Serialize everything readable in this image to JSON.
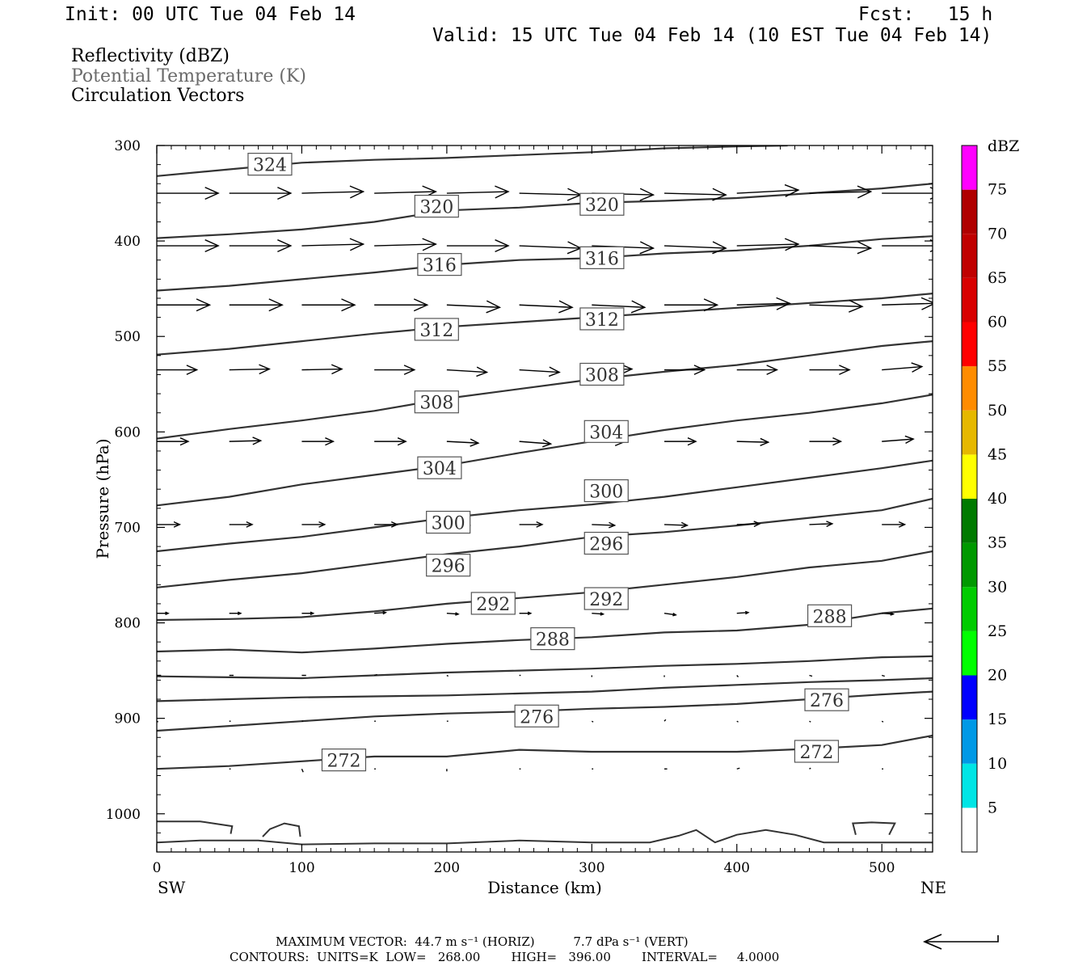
{
  "header": {
    "init": "Init: 00 UTC Tue 04 Feb 14",
    "fcst": "Fcst:   15 h",
    "valid": "Valid: 15 UTC Tue 04 Feb 14 (10 EST Tue 04 Feb 14)"
  },
  "fields": {
    "reflectivity": "Reflectivity (dBZ)",
    "theta": "Potential Temperature (K)",
    "vectors": "Circulation Vectors"
  },
  "footer": {
    "max_vector": "MAXIMUM VECTOR:  44.7 m s⁻¹ (HORIZ)          7.7 dPa s⁻¹ (VERT)",
    "contours": "CONTOURS:  UNITS=K  LOW=   268.00        HIGH=   396.00        INTERVAL=     4.0000"
  },
  "colors": {
    "contour": "#333333",
    "vector": "#000000",
    "scale": [
      "#ffffff",
      "#00e5e5",
      "#0099e6",
      "#0000ff",
      "#00ff00",
      "#00cc00",
      "#009900",
      "#007a00",
      "#ffff00",
      "#e6b800",
      "#ff8c00",
      "#ff0000",
      "#d80000",
      "#c00000",
      "#b00000",
      "#ff00ff",
      "#9966cc",
      "#ffffff"
    ]
  },
  "chart_data": {
    "type": "contour",
    "xlabel": "Distance (km)",
    "ylabel": "Pressure (hPa)",
    "xlim": [
      0,
      535
    ],
    "ylim": [
      1040,
      300
    ],
    "x_ticks": [
      0,
      100,
      200,
      300,
      400,
      500
    ],
    "y_ticks": [
      300,
      400,
      500,
      600,
      700,
      800,
      900,
      1000
    ],
    "x_ends": [
      "SW",
      "NE"
    ],
    "colorbar": {
      "title": "dBZ",
      "levels": [
        5,
        10,
        15,
        20,
        25,
        30,
        35,
        40,
        45,
        50,
        55,
        60,
        65,
        70,
        75
      ],
      "range": [
        0,
        80
      ]
    },
    "theta_contours": [
      {
        "value": 272,
        "points": [
          [
            0,
            953
          ],
          [
            50,
            950
          ],
          [
            100,
            945
          ],
          [
            150,
            940
          ],
          [
            200,
            940
          ],
          [
            250,
            933
          ],
          [
            300,
            935
          ],
          [
            350,
            935
          ],
          [
            400,
            935
          ],
          [
            450,
            932
          ],
          [
            500,
            928
          ],
          [
            535,
            918
          ]
        ]
      },
      {
        "value": 276,
        "points": [
          [
            0,
            913
          ],
          [
            50,
            908
          ],
          [
            100,
            903
          ],
          [
            150,
            898
          ],
          [
            200,
            895
          ],
          [
            250,
            893
          ],
          [
            300,
            890
          ],
          [
            350,
            888
          ],
          [
            400,
            885
          ],
          [
            450,
            880
          ],
          [
            500,
            875
          ],
          [
            535,
            872
          ]
        ]
      },
      {
        "value": 280,
        "points": [
          [
            0,
            882
          ],
          [
            50,
            880
          ],
          [
            100,
            878
          ],
          [
            150,
            877
          ],
          [
            200,
            876
          ],
          [
            250,
            874
          ],
          [
            300,
            872
          ],
          [
            350,
            868
          ],
          [
            400,
            865
          ],
          [
            450,
            862
          ],
          [
            500,
            860
          ],
          [
            535,
            858
          ]
        ]
      },
      {
        "value": 284,
        "points": [
          [
            0,
            856
          ],
          [
            50,
            857
          ],
          [
            100,
            858
          ],
          [
            150,
            855
          ],
          [
            200,
            852
          ],
          [
            250,
            850
          ],
          [
            300,
            848
          ],
          [
            350,
            845
          ],
          [
            400,
            843
          ],
          [
            450,
            840
          ],
          [
            500,
            836
          ],
          [
            535,
            835
          ]
        ]
      },
      {
        "value": 288,
        "points": [
          [
            0,
            830
          ],
          [
            50,
            828
          ],
          [
            100,
            831
          ],
          [
            150,
            827
          ],
          [
            200,
            822
          ],
          [
            250,
            818
          ],
          [
            300,
            815
          ],
          [
            350,
            810
          ],
          [
            400,
            808
          ],
          [
            450,
            802
          ],
          [
            500,
            790
          ],
          [
            535,
            785
          ]
        ]
      },
      {
        "value": 292,
        "points": [
          [
            0,
            797
          ],
          [
            50,
            796
          ],
          [
            100,
            794
          ],
          [
            150,
            788
          ],
          [
            200,
            780
          ],
          [
            250,
            774
          ],
          [
            300,
            768
          ],
          [
            350,
            760
          ],
          [
            400,
            752
          ],
          [
            450,
            742
          ],
          [
            500,
            735
          ],
          [
            535,
            725
          ]
        ]
      },
      {
        "value": 296,
        "points": [
          [
            0,
            763
          ],
          [
            50,
            755
          ],
          [
            100,
            748
          ],
          [
            150,
            738
          ],
          [
            200,
            728
          ],
          [
            250,
            720
          ],
          [
            300,
            710
          ],
          [
            350,
            705
          ],
          [
            400,
            698
          ],
          [
            450,
            690
          ],
          [
            500,
            682
          ],
          [
            535,
            670
          ]
        ]
      },
      {
        "value": 300,
        "points": [
          [
            0,
            725
          ],
          [
            50,
            717
          ],
          [
            100,
            710
          ],
          [
            150,
            700
          ],
          [
            200,
            690
          ],
          [
            250,
            682
          ],
          [
            300,
            676
          ],
          [
            350,
            668
          ],
          [
            400,
            658
          ],
          [
            450,
            648
          ],
          [
            500,
            638
          ],
          [
            535,
            630
          ]
        ]
      },
      {
        "value": 304,
        "points": [
          [
            0,
            677
          ],
          [
            50,
            668
          ],
          [
            100,
            655
          ],
          [
            150,
            645
          ],
          [
            200,
            635
          ],
          [
            250,
            622
          ],
          [
            300,
            610
          ],
          [
            350,
            598
          ],
          [
            400,
            588
          ],
          [
            450,
            580
          ],
          [
            500,
            570
          ],
          [
            535,
            561
          ]
        ]
      },
      {
        "value": 308,
        "points": [
          [
            0,
            607
          ],
          [
            50,
            597
          ],
          [
            100,
            588
          ],
          [
            150,
            578
          ],
          [
            200,
            565
          ],
          [
            250,
            555
          ],
          [
            300,
            545
          ],
          [
            350,
            537
          ],
          [
            400,
            530
          ],
          [
            450,
            520
          ],
          [
            500,
            510
          ],
          [
            535,
            505
          ]
        ]
      },
      {
        "value": 312,
        "points": [
          [
            0,
            519
          ],
          [
            50,
            513
          ],
          [
            100,
            505
          ],
          [
            150,
            497
          ],
          [
            200,
            490
          ],
          [
            250,
            485
          ],
          [
            300,
            480
          ],
          [
            350,
            475
          ],
          [
            400,
            470
          ],
          [
            450,
            465
          ],
          [
            500,
            460
          ],
          [
            535,
            455
          ]
        ]
      },
      {
        "value": 316,
        "points": [
          [
            0,
            452
          ],
          [
            50,
            447
          ],
          [
            100,
            440
          ],
          [
            150,
            433
          ],
          [
            200,
            425
          ],
          [
            250,
            420
          ],
          [
            300,
            418
          ],
          [
            350,
            413
          ],
          [
            400,
            410
          ],
          [
            450,
            405
          ],
          [
            500,
            398
          ],
          [
            535,
            395
          ]
        ]
      },
      {
        "value": 320,
        "points": [
          [
            0,
            397
          ],
          [
            50,
            393
          ],
          [
            100,
            388
          ],
          [
            150,
            380
          ],
          [
            200,
            368
          ],
          [
            250,
            365
          ],
          [
            300,
            360
          ],
          [
            350,
            358
          ],
          [
            400,
            355
          ],
          [
            450,
            350
          ],
          [
            500,
            345
          ],
          [
            535,
            340
          ]
        ]
      },
      {
        "value": 324,
        "points": [
          [
            0,
            332
          ],
          [
            50,
            325
          ],
          [
            100,
            318
          ],
          [
            150,
            315
          ],
          [
            200,
            313
          ],
          [
            250,
            310
          ],
          [
            300,
            307
          ],
          [
            350,
            303
          ],
          [
            400,
            301
          ],
          [
            435,
            300
          ]
        ]
      }
    ],
    "contour_labels": [
      {
        "value": 324,
        "x": 78,
        "p": 320
      },
      {
        "value": 320,
        "x": 193,
        "p": 364
      },
      {
        "value": 320,
        "x": 307,
        "p": 362
      },
      {
        "value": 316,
        "x": 195,
        "p": 425
      },
      {
        "value": 316,
        "x": 307,
        "p": 418
      },
      {
        "value": 312,
        "x": 193,
        "p": 493
      },
      {
        "value": 312,
        "x": 307,
        "p": 482
      },
      {
        "value": 308,
        "x": 193,
        "p": 569
      },
      {
        "value": 308,
        "x": 307,
        "p": 540
      },
      {
        "value": 304,
        "x": 195,
        "p": 638
      },
      {
        "value": 304,
        "x": 310,
        "p": 600
      },
      {
        "value": 300,
        "x": 201,
        "p": 695
      },
      {
        "value": 300,
        "x": 310,
        "p": 662
      },
      {
        "value": 296,
        "x": 201,
        "p": 740
      },
      {
        "value": 296,
        "x": 310,
        "p": 717
      },
      {
        "value": 292,
        "x": 232,
        "p": 780
      },
      {
        "value": 292,
        "x": 310,
        "p": 775
      },
      {
        "value": 288,
        "x": 273,
        "p": 817
      },
      {
        "value": 288,
        "x": 464,
        "p": 793
      },
      {
        "value": 276,
        "x": 262,
        "p": 898
      },
      {
        "value": 276,
        "x": 462,
        "p": 881
      },
      {
        "value": 272,
        "x": 129,
        "p": 944
      },
      {
        "value": 272,
        "x": 455,
        "p": 935
      }
    ],
    "surface_contour": [
      [
        0,
        1030
      ],
      [
        30,
        1028
      ],
      [
        70,
        1028
      ],
      [
        100,
        1032
      ],
      [
        150,
        1031
      ],
      [
        200,
        1031
      ],
      [
        250,
        1028
      ],
      [
        300,
        1030
      ],
      [
        340,
        1030
      ],
      [
        360,
        1023
      ],
      [
        372,
        1017
      ],
      [
        385,
        1030
      ],
      [
        400,
        1022
      ],
      [
        420,
        1017
      ],
      [
        440,
        1022
      ],
      [
        460,
        1030
      ],
      [
        500,
        1030
      ],
      [
        520,
        1030
      ],
      [
        535,
        1030
      ]
    ],
    "blobs": [
      {
        "points": [
          [
            0,
            1008
          ],
          [
            30,
            1008
          ],
          [
            52,
            1013
          ],
          [
            51,
            1021
          ]
        ]
      },
      {
        "points": [
          [
            73,
            1024
          ],
          [
            78,
            1016
          ],
          [
            88,
            1010
          ],
          [
            98,
            1013
          ],
          [
            99,
            1024
          ]
        ]
      },
      {
        "points": [
          [
            482,
            1022
          ],
          [
            480,
            1010
          ],
          [
            493,
            1009
          ],
          [
            509,
            1010
          ],
          [
            505,
            1022
          ]
        ]
      }
    ],
    "vector_rows": [
      {
        "p": 350,
        "u": [
          43,
          43,
          43,
          43,
          43,
          43,
          43,
          43,
          43,
          43,
          43
        ],
        "v": [
          0,
          0,
          -2,
          -2,
          -2,
          2,
          2,
          2,
          -4,
          -2,
          0
        ]
      },
      {
        "p": 405,
        "u": [
          43,
          43,
          43,
          43,
          43,
          43,
          43,
          43,
          43,
          43,
          43
        ],
        "v": [
          0,
          0,
          -2,
          -2,
          0,
          3,
          3,
          3,
          -2,
          3,
          0
        ]
      },
      {
        "p": 467,
        "u": [
          37,
          37,
          37,
          37,
          37,
          37,
          37,
          37,
          37,
          37,
          37
        ],
        "v": [
          0,
          0,
          0,
          0,
          3,
          3,
          3,
          0,
          -2,
          2,
          -2
        ]
      },
      {
        "p": 535,
        "u": [
          28,
          28,
          28,
          28,
          28,
          28,
          28,
          28,
          28,
          28,
          28
        ],
        "v": [
          0,
          -1,
          -1,
          0,
          3,
          3,
          -1,
          0,
          0,
          0,
          -4
        ]
      },
      {
        "p": 610,
        "u": [
          22,
          22,
          22,
          22,
          22,
          22,
          22,
          22,
          22,
          22,
          22
        ],
        "v": [
          0,
          -1,
          0,
          0,
          2,
          3,
          1,
          0,
          1,
          0,
          -3
        ]
      },
      {
        "p": 697,
        "u": [
          16,
          16,
          16,
          16,
          16,
          16,
          16,
          16,
          16,
          16,
          16
        ],
        "v": [
          0,
          0,
          0,
          0,
          1,
          0,
          1,
          1,
          -1,
          -1,
          0
        ]
      },
      {
        "p": 790,
        "u": [
          8,
          8,
          8,
          8,
          8,
          8,
          8,
          8,
          8,
          8,
          8
        ],
        "v": [
          0,
          0,
          0,
          -1,
          1,
          0,
          1,
          2,
          -1,
          -1,
          1
        ]
      },
      {
        "p": 855,
        "u": [
          3,
          3,
          3,
          2,
          1,
          1,
          0,
          0,
          1,
          2,
          2
        ],
        "v": [
          0,
          0,
          0,
          -1,
          1,
          0,
          2,
          2,
          2,
          1,
          1
        ]
      },
      {
        "p": 903,
        "u": [
          1,
          1,
          1,
          1,
          1,
          1,
          1,
          1,
          1,
          1,
          1
        ],
        "v": [
          1,
          0,
          0,
          0,
          0,
          1,
          1,
          -2,
          1,
          1,
          1
        ]
      },
      {
        "p": 953,
        "u": [
          0,
          1,
          1,
          1,
          0,
          1,
          1,
          2,
          2,
          1,
          1
        ],
        "v": [
          0,
          0,
          4,
          0,
          3,
          0,
          0,
          0,
          -1,
          -1,
          0
        ]
      }
    ],
    "vector_x": [
      0,
      50,
      100,
      150,
      200,
      250,
      300,
      350,
      400,
      450,
      500
    ]
  }
}
